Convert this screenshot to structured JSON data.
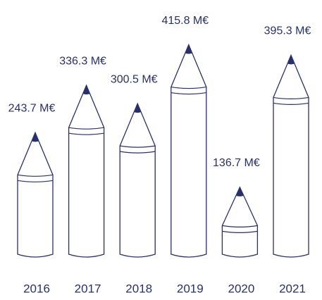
{
  "chart_data": {
    "type": "bar",
    "categories": [
      "2016",
      "2017",
      "2018",
      "2019",
      "2020",
      "2021"
    ],
    "values": [
      243.7,
      336.3,
      300.5,
      415.8,
      136.7,
      395.3
    ],
    "value_labels": [
      "243.7 M€",
      "336.3 M€",
      "300.5 M€",
      "415.8 M€",
      "136.7 M€",
      "395.3 M€"
    ],
    "color": "#27306f"
  }
}
